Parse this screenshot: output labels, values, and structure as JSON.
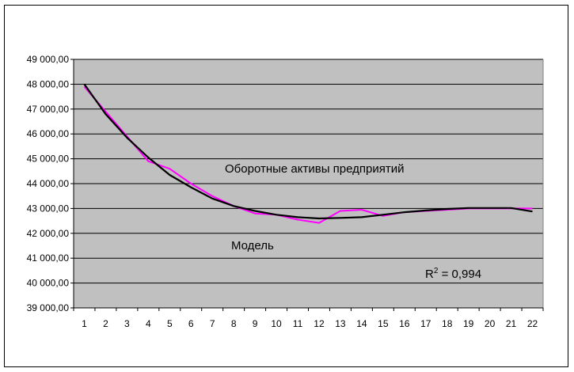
{
  "chart_data": {
    "type": "line",
    "title": "",
    "xlabel": "",
    "ylabel": "",
    "categories": [
      "1",
      "2",
      "3",
      "4",
      "5",
      "6",
      "7",
      "8",
      "9",
      "10",
      "11",
      "12",
      "13",
      "14",
      "15",
      "16",
      "17",
      "18",
      "19",
      "20",
      "21",
      "22"
    ],
    "ylim": [
      39000,
      49000
    ],
    "yticks": [
      39000,
      40000,
      41000,
      42000,
      43000,
      44000,
      45000,
      46000,
      47000,
      48000,
      49000
    ],
    "ytick_labels": [
      "39 000,00",
      "40 000,00",
      "41 000,00",
      "42 000,00",
      "43 000,00",
      "44 000,00",
      "45 000,00",
      "46 000,00",
      "47 000,00",
      "48 000,00",
      "49 000,00"
    ],
    "grid": true,
    "plot_background": "#c0c0c0",
    "series": [
      {
        "name": "Оборотные активы предприятий",
        "color": "#ff00ff",
        "values": [
          47900,
          46900,
          45900,
          44900,
          44600,
          44000,
          43500,
          43100,
          42800,
          42750,
          42550,
          42420,
          42900,
          42950,
          42700,
          42850,
          42900,
          42950,
          43000,
          43000,
          43000,
          43000
        ]
      },
      {
        "name": "Модель",
        "color": "#000000",
        "values": [
          48000,
          46800,
          45850,
          45050,
          44350,
          43850,
          43400,
          43100,
          42900,
          42750,
          42650,
          42600,
          42620,
          42650,
          42750,
          42850,
          42920,
          42980,
          43020,
          43020,
          43020,
          42880
        ]
      }
    ],
    "annotations": {
      "series1_label": "Оборотные активы предприятий",
      "series2_label": "Модель",
      "r2_prefix": "R",
      "r2_sup": "2",
      "r2_value": " = 0,994"
    }
  }
}
